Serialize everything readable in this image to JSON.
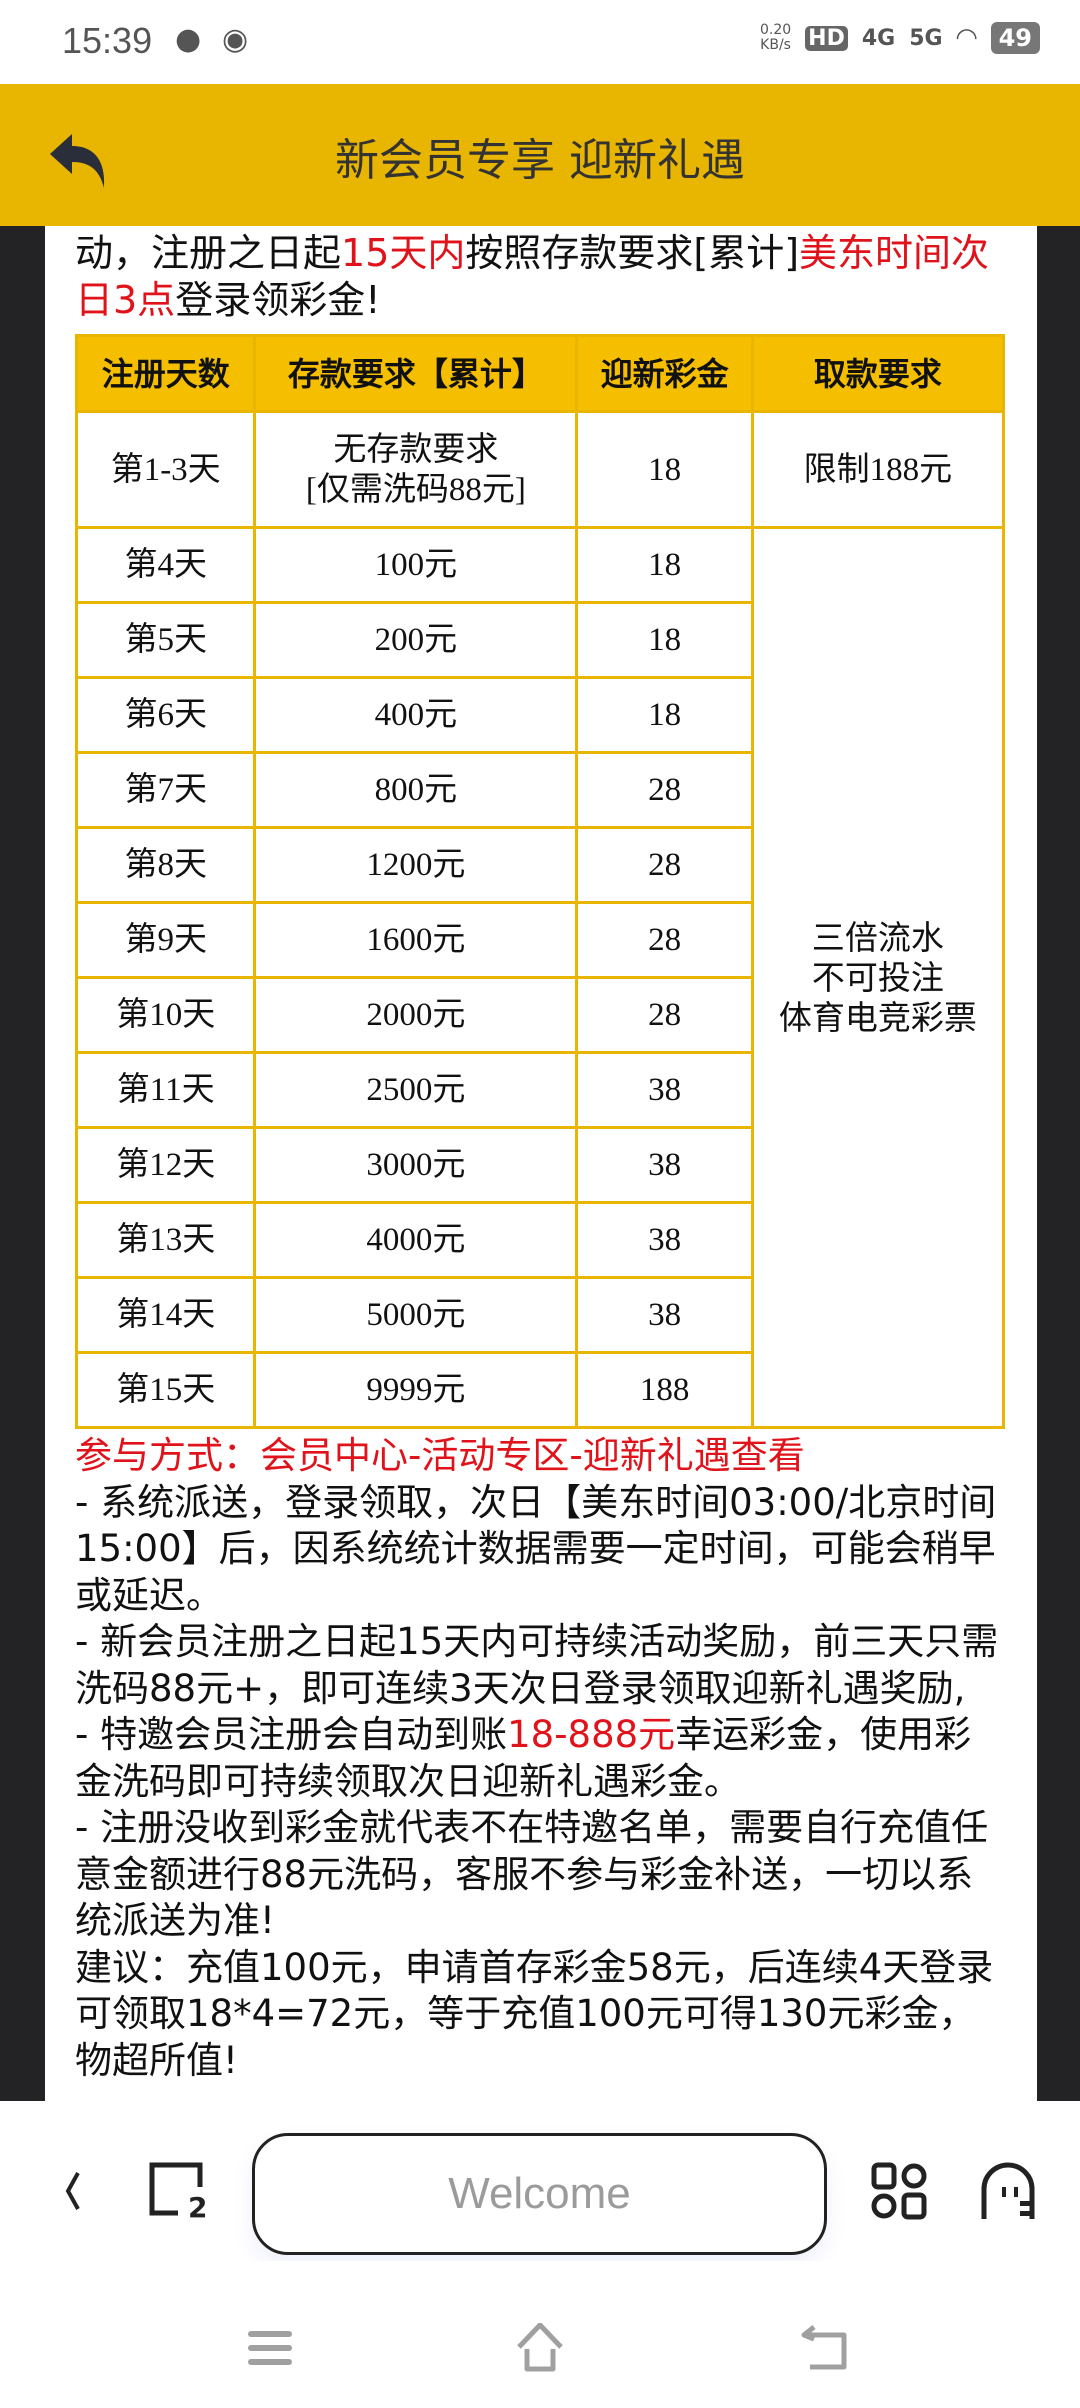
{
  "status_bar": {
    "time": "15:39",
    "net_speed": "0.20",
    "net_unit": "KB/s",
    "hd": "HD",
    "sim1": "4G",
    "sim2": "5G",
    "battery": "49"
  },
  "header": {
    "title": "新会员专享 迎新礼遇"
  },
  "intro": {
    "p1": "动，注册之日起",
    "red1": "15天内",
    "p2": "按照存款要求[累计]",
    "red2": "美东时间次日3点",
    "p3": "登录领彩金!"
  },
  "table": {
    "headers": [
      "注册天数",
      "存款要求【累计】",
      "迎新彩金",
      "取款要求"
    ],
    "first_row": {
      "day": "第1-3天",
      "deposit_line1": "无存款要求",
      "deposit_line2": "[仅需洗码88元]",
      "bonus": "18",
      "withdraw": "限制188元"
    },
    "rows": [
      {
        "day": "第4天",
        "deposit": "100元",
        "bonus": "18"
      },
      {
        "day": "第5天",
        "deposit": "200元",
        "bonus": "18"
      },
      {
        "day": "第6天",
        "deposit": "400元",
        "bonus": "18"
      },
      {
        "day": "第7天",
        "deposit": "800元",
        "bonus": "28"
      },
      {
        "day": "第8天",
        "deposit": "1200元",
        "bonus": "28"
      },
      {
        "day": "第9天",
        "deposit": "1600元",
        "bonus": "28"
      },
      {
        "day": "第10天",
        "deposit": "2000元",
        "bonus": "28"
      },
      {
        "day": "第11天",
        "deposit": "2500元",
        "bonus": "38"
      },
      {
        "day": "第12天",
        "deposit": "3000元",
        "bonus": "38"
      },
      {
        "day": "第13天",
        "deposit": "4000元",
        "bonus": "38"
      },
      {
        "day": "第14天",
        "deposit": "5000元",
        "bonus": "38"
      },
      {
        "day": "第15天",
        "deposit": "9999元",
        "bonus": "188"
      }
    ],
    "withdraw_merged": [
      "三倍流水",
      "不可投注",
      "体育电竞彩票"
    ]
  },
  "notes": {
    "how": "参与方式：会员中心-活动专区-迎新礼遇查看",
    "n1": "- 系统派送，登录领取，次日【美东时间03:00/北京时间15:00】后，因系统统计数据需要一定时间，可能会稍早或延迟。",
    "n2": "- 新会员注册之日起15天内可持续活动奖励，前三天只需洗码88元+，即可连续3天次日登录领取迎新礼遇奖励,",
    "n3a": "- 特邀会员注册会自动到账",
    "n3red": "18-888元",
    "n3b": "幸运彩金，使用彩金洗码即可持续领取次日迎新礼遇彩金。",
    "n4": "- 注册没收到彩金就代表不在特邀名单，需要自行充值任意金额进行88元洗码，客服不参与彩金补送，一切以系统派送为准!",
    "n5": "建议：充值100元，申请首存彩金58元，后连续4天登录可领取18*4=72元，等于充值100元可得130元彩金，物超所值!"
  },
  "browser_bar": {
    "address_text": "Welcome",
    "tab_count": "2"
  },
  "colors": {
    "accent": "#E8B500",
    "red": "#e0121a",
    "side": "#232326"
  }
}
